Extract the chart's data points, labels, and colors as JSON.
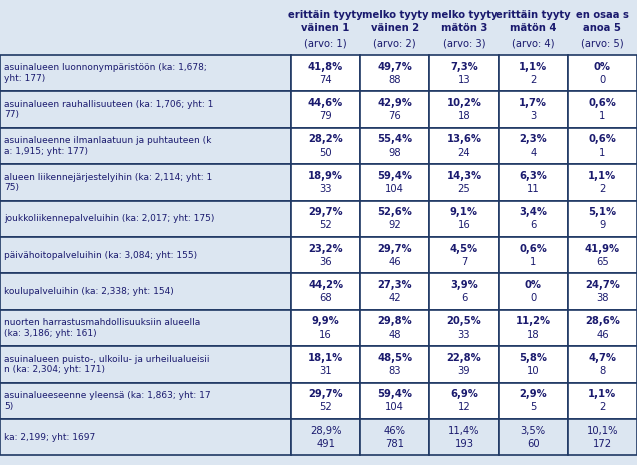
{
  "background_color": "#dce6f1",
  "header_lines": [
    [
      "erittäin tyyty",
      "melko tyyty",
      "melko tyyty",
      "erittäin tyyty",
      "en osaa s"
    ],
    [
      "väinen 1",
      "väinen 2",
      "mätön 3",
      "mätön 4",
      "anoa 5"
    ],
    [
      "(arvo: 1)",
      "(arvo: 2)",
      "(arvo: 3)",
      "(arvo: 4)",
      "(arvo: 5)"
    ]
  ],
  "row_labels": [
    "asuinalueen luonnonympäristöön (ka: 1,678;\nyht: 177)",
    "asuinalueen rauhallisuuteen (ka: 1,706; yht: 1\n77)",
    "asuinalueenne ilmanlaatuun ja puhtauteen (k\na: 1,915; yht: 177)",
    "alueen liikennejärjestelyihin (ka: 2,114; yht: 1\n75)",
    "joukkoliikennepalveluihin (ka: 2,017; yht: 175)",
    "päivähoitopalveluihin (ka: 3,084; yht: 155)",
    "koulupalveluihin (ka: 2,338; yht: 154)",
    "nuorten harrastusmahdollisuuksiin alueella\n(ka: 3,186; yht: 161)",
    "asuinalueen puisto-, ulkoilu- ja urheilualueisii\nn (ka: 2,304; yht: 171)",
    "asuinalueeseenne yleensä (ka: 1,863; yht: 17\n5)",
    "ka: 2,199; yht: 1697"
  ],
  "cell_data": [
    [
      [
        "41,8%",
        "74"
      ],
      [
        "49,7%",
        "88"
      ],
      [
        "7,3%",
        "13"
      ],
      [
        "1,1%",
        "2"
      ],
      [
        "0%",
        "0"
      ]
    ],
    [
      [
        "44,6%",
        "79"
      ],
      [
        "42,9%",
        "76"
      ],
      [
        "10,2%",
        "18"
      ],
      [
        "1,7%",
        "3"
      ],
      [
        "0,6%",
        "1"
      ]
    ],
    [
      [
        "28,2%",
        "50"
      ],
      [
        "55,4%",
        "98"
      ],
      [
        "13,6%",
        "24"
      ],
      [
        "2,3%",
        "4"
      ],
      [
        "0,6%",
        "1"
      ]
    ],
    [
      [
        "18,9%",
        "33"
      ],
      [
        "59,4%",
        "104"
      ],
      [
        "14,3%",
        "25"
      ],
      [
        "6,3%",
        "11"
      ],
      [
        "1,1%",
        "2"
      ]
    ],
    [
      [
        "29,7%",
        "52"
      ],
      [
        "52,6%",
        "92"
      ],
      [
        "9,1%",
        "16"
      ],
      [
        "3,4%",
        "6"
      ],
      [
        "5,1%",
        "9"
      ]
    ],
    [
      [
        "23,2%",
        "36"
      ],
      [
        "29,7%",
        "46"
      ],
      [
        "4,5%",
        "7"
      ],
      [
        "0,6%",
        "1"
      ],
      [
        "41,9%",
        "65"
      ]
    ],
    [
      [
        "44,2%",
        "68"
      ],
      [
        "27,3%",
        "42"
      ],
      [
        "3,9%",
        "6"
      ],
      [
        "0%",
        "0"
      ],
      [
        "24,7%",
        "38"
      ]
    ],
    [
      [
        "9,9%",
        "16"
      ],
      [
        "29,8%",
        "48"
      ],
      [
        "20,5%",
        "33"
      ],
      [
        "11,2%",
        "18"
      ],
      [
        "28,6%",
        "46"
      ]
    ],
    [
      [
        "18,1%",
        "31"
      ],
      [
        "48,5%",
        "83"
      ],
      [
        "22,8%",
        "39"
      ],
      [
        "5,8%",
        "10"
      ],
      [
        "4,7%",
        "8"
      ]
    ],
    [
      [
        "29,7%",
        "52"
      ],
      [
        "59,4%",
        "104"
      ],
      [
        "6,9%",
        "12"
      ],
      [
        "2,9%",
        "5"
      ],
      [
        "1,1%",
        "2"
      ]
    ],
    [
      [
        "28,9%",
        "491"
      ],
      [
        "46%",
        "781"
      ],
      [
        "11,4%",
        "193"
      ],
      [
        "3,5%",
        "60"
      ],
      [
        "10,1%",
        "172"
      ]
    ]
  ],
  "text_color": "#1a1a6e",
  "border_color": "#1f3864",
  "cell_bg": "#ffffff",
  "header_bg": "#dce6f1",
  "fig_width": 6.37,
  "fig_height": 4.65,
  "dpi": 100
}
